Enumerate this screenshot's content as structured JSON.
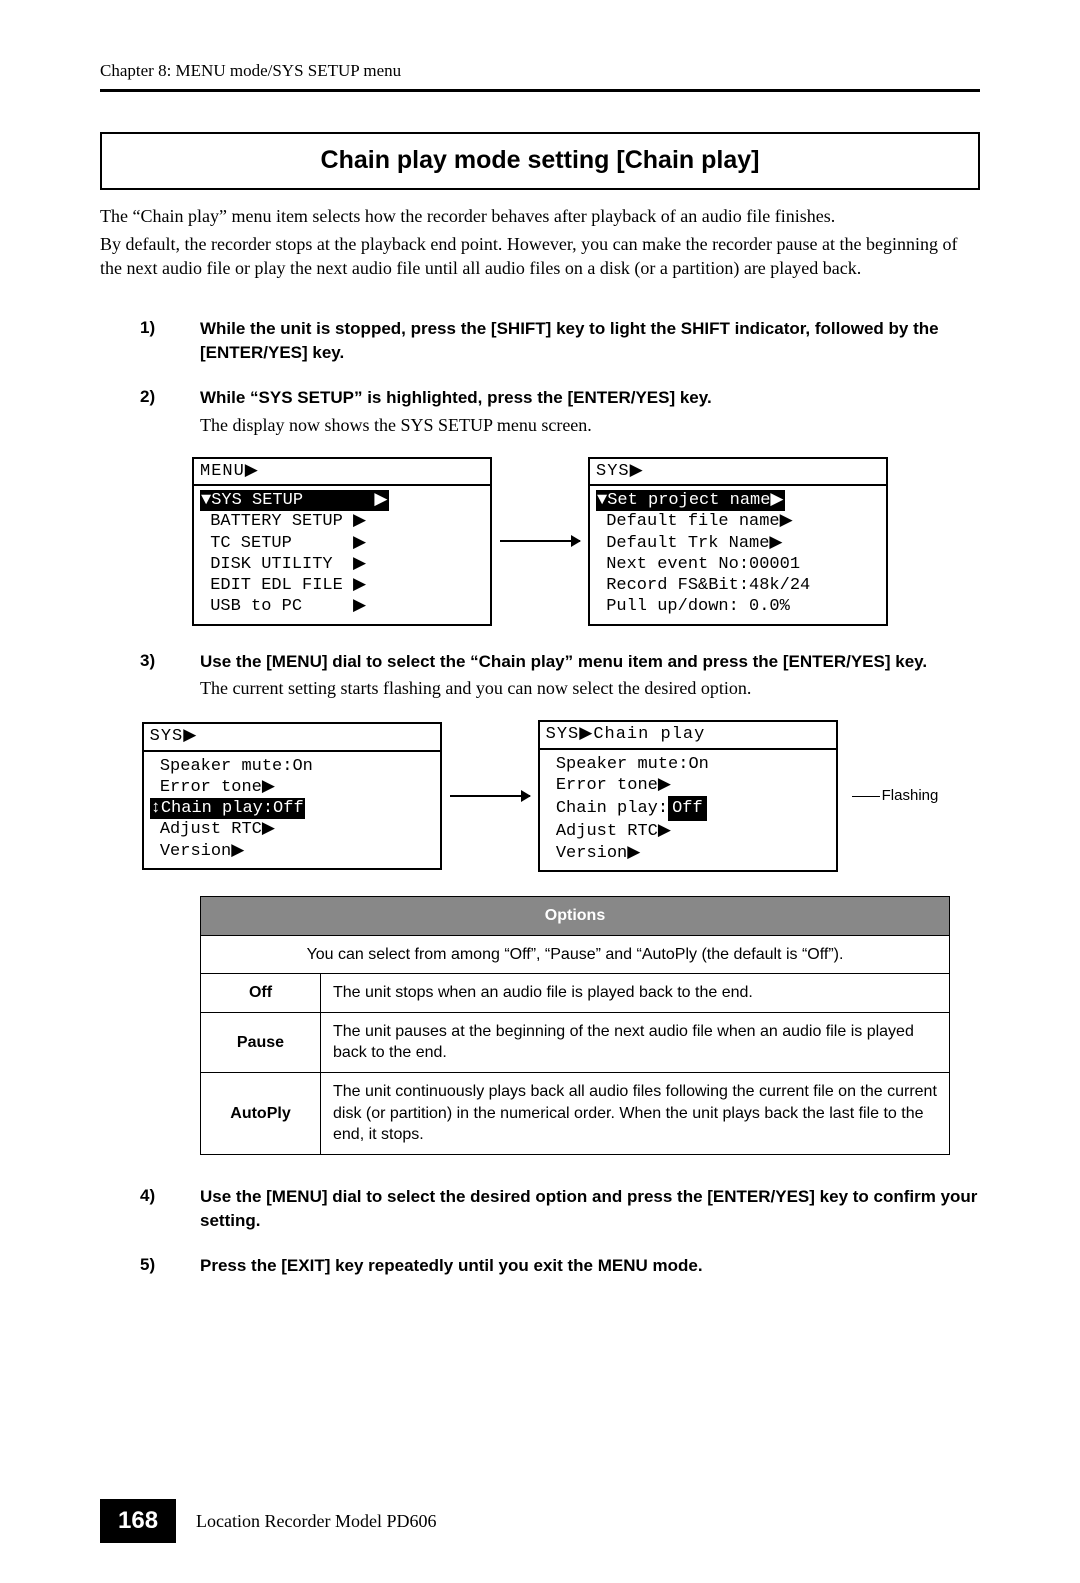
{
  "header": {
    "chapter": "Chapter 8: MENU mode/SYS SETUP menu"
  },
  "title": "Chain play mode setting [Chain play]",
  "intro": {
    "p1": "The “Chain play” menu item selects how the recorder behaves after playback of an audio file finishes.",
    "p2": "By default, the recorder stops at the playback end point. However, you can make the recorder pause at the beginning of the next audio file or play the next audio file until all audio files on a disk (or a partition) are played back."
  },
  "steps": {
    "s1": {
      "num": "1)",
      "bold": "While the unit is stopped, press the [SHIFT] key to light the SHIFT indicator, followed by the [ENTER/YES] key."
    },
    "s2": {
      "num": "2)",
      "bold": "While “SYS SETUP” is highlighted, press the [ENTER/YES] key.",
      "plain": "The display now shows the SYS SETUP menu screen."
    },
    "s3": {
      "num": "3)",
      "bold": "Use the [MENU] dial to select the “Chain play” menu item and press the [ENTER/YES] key.",
      "plain": "The current setting starts flashing and you can now select the desired option."
    },
    "s4": {
      "num": "4)",
      "bold": "Use the [MENU] dial to select the desired option and press the [ENTER/YES] key to confirm your setting."
    },
    "s5": {
      "num": "5)",
      "bold": "Press the [EXIT] key repeatedly until you exit the MENU mode."
    }
  },
  "lcd1": {
    "left": {
      "title": "MENU▶",
      "line_hl": "▼SYS SETUP       ▶",
      "l2": " BATTERY SETUP ▶",
      "l3": " TC SETUP      ▶",
      "l4": " DISK UTILITY  ▶",
      "l5": " EDIT EDL FILE ▶",
      "l6": " USB to PC     ▶"
    },
    "right": {
      "title": "SYS▶",
      "line_hl": "▼Set project name▶",
      "l2": " Default file name▶",
      "l3": " Default Trk Name▶",
      "l4": " Next event No:00001",
      "l5": " Record FS&Bit:48k/24",
      "l6": " Pull up/down: 0.0%"
    }
  },
  "lcd2": {
    "left": {
      "title": "SYS▶",
      "l1": " Speaker mute:On",
      "l2": " Error tone▶",
      "hl": "↕Chain play:Off",
      "l4": " Adjust RTC▶",
      "l5": " Version▶"
    },
    "right": {
      "title": "SYS▶Chain play",
      "l1": " Speaker mute:On",
      "l2": " Error tone▶",
      "l3a": " Chain play:",
      "l3b": "Off",
      "l4": " Adjust RTC▶",
      "l5": " Version▶"
    },
    "flashing": "Flashing"
  },
  "table": {
    "header": "Options",
    "intro": "You can select from among “Off”, “Pause” and “AutoPly (the default is “Off”).",
    "rows": {
      "r1": {
        "label": "Off",
        "desc": "The unit stops when an audio file is played back to the end."
      },
      "r2": {
        "label": "Pause",
        "desc": "The unit pauses at the beginning of the next audio file when an audio file is played back to the end."
      },
      "r3": {
        "label": "AutoPly",
        "desc": "The unit continuously plays back all audio files following the current file on the current disk (or partition) in the numerical order. When the unit plays back the last file to the end, it stops."
      }
    }
  },
  "footer": {
    "page": "168",
    "text": "Location Recorder  Model PD606"
  },
  "colors": {
    "header_bg": "#888888",
    "page_bg": "#000000"
  }
}
